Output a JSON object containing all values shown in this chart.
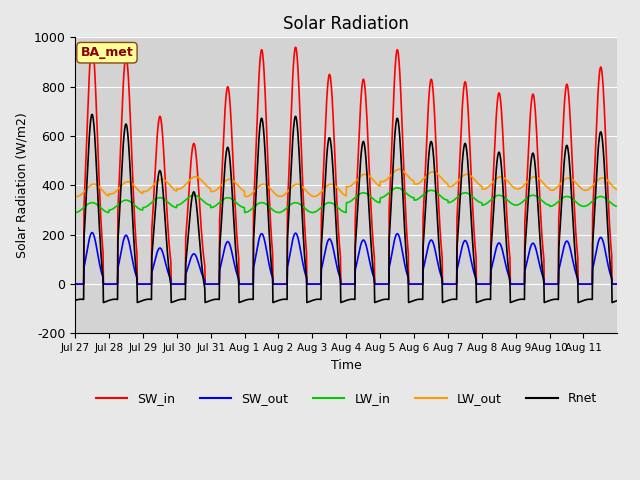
{
  "title": "Solar Radiation",
  "ylabel": "Solar Radiation (W/m2)",
  "xlabel": "Time",
  "ylim": [
    -200,
    1000
  ],
  "background_color": "#e8e8e8",
  "plot_bg_color": "#d3d3d3",
  "series": {
    "SW_in": {
      "color": "#ff0000",
      "lw": 1.2
    },
    "SW_out": {
      "color": "#0000ff",
      "lw": 1.2
    },
    "LW_in": {
      "color": "#00cc00",
      "lw": 1.2
    },
    "LW_out": {
      "color": "#ff9900",
      "lw": 1.2
    },
    "Rnet": {
      "color": "#000000",
      "lw": 1.2
    }
  },
  "xtick_labels": [
    "Jul 27",
    "Jul 28",
    "Jul 29",
    "Jul 30",
    "Jul 31",
    "Aug 1",
    "Aug 2",
    "Aug 3",
    "Aug 4",
    "Aug 5",
    "Aug 6",
    "Aug 7",
    "Aug 8",
    "Aug 9",
    "Aug 10",
    "Aug 11"
  ],
  "ytick_positions": [
    -200,
    0,
    200,
    400,
    600,
    800,
    1000
  ],
  "ytick_labels": [
    "-200",
    "0",
    "200",
    "400",
    "600",
    "800",
    "1000"
  ],
  "num_days": 16,
  "sw_in_peaks": [
    970,
    920,
    680,
    570,
    800,
    950,
    960,
    850,
    830,
    950,
    830,
    820,
    775,
    770,
    810,
    880
  ],
  "lw_in_bases": [
    310,
    320,
    330,
    340,
    330,
    310,
    310,
    310,
    350,
    370,
    360,
    350,
    340,
    340,
    335,
    335
  ],
  "annotation_label": "BA_met",
  "annotation_facecolor": "#ffff99",
  "annotation_edgecolor": "#8b4513",
  "annotation_textcolor": "#8b0000"
}
